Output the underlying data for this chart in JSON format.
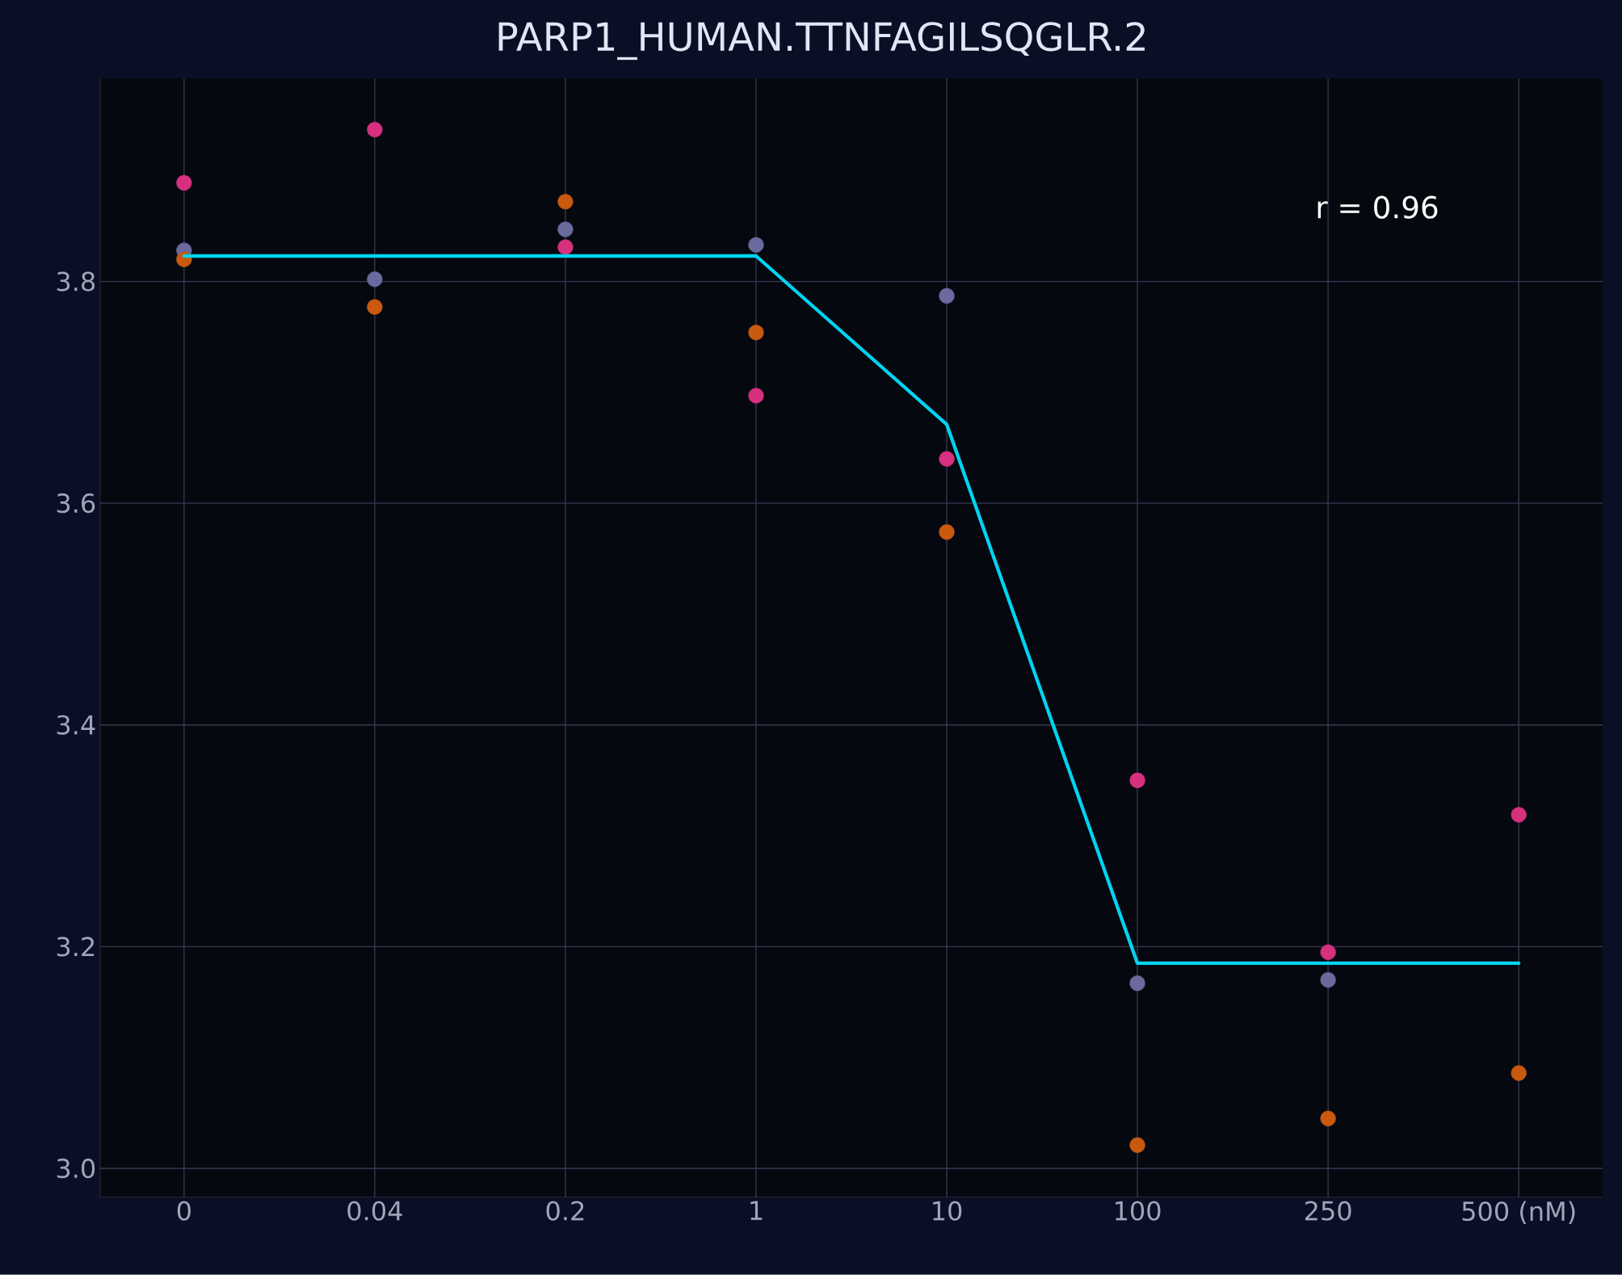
{
  "chart_data": {
    "type": "scatter",
    "title": "PARP1_HUMAN.TTNFAGILSQGLR.2",
    "categories": [
      "0",
      "0.04",
      "0.2",
      "1",
      "10",
      "100",
      "250",
      "500 (nM)"
    ],
    "series": [
      {
        "color": "#d6307f",
        "values": [
          3.889,
          3.937,
          3.831,
          3.697,
          3.64,
          3.35,
          3.195,
          3.319
        ]
      },
      {
        "color": "#6a6a9f",
        "values": [
          3.828,
          3.802,
          3.847,
          3.833,
          3.787,
          3.167,
          3.17,
          null
        ]
      },
      {
        "color": "#c8590f",
        "values": [
          3.82,
          3.777,
          3.872,
          3.754,
          3.574,
          3.021,
          3.045,
          3.086
        ]
      },
      {
        "type": "line",
        "color": "#00d4f0",
        "marker": "none",
        "values": [
          3.823,
          3.823,
          3.823,
          3.823,
          3.671,
          3.185,
          3.185,
          3.185
        ]
      }
    ],
    "ylim": [
      2.974,
      3.983
    ],
    "yticks": [
      {
        "value": 3.0,
        "label": "3.0"
      },
      {
        "value": 3.2,
        "label": "3.2"
      },
      {
        "value": 3.4,
        "label": "3.4"
      },
      {
        "value": 3.6,
        "label": "3.6"
      },
      {
        "value": 3.8,
        "label": "3.8"
      }
    ],
    "annotations": [
      "r = 0.96"
    ],
    "grid": true,
    "marker": "circle"
  }
}
